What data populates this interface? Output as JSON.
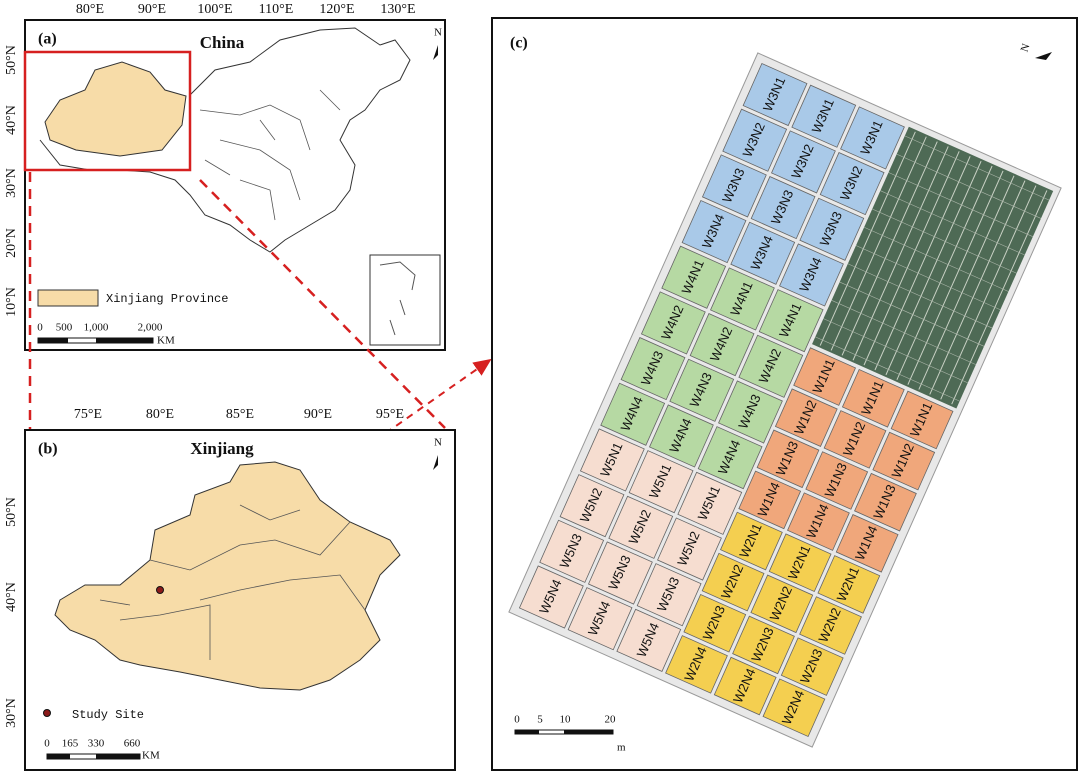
{
  "panel_a": {
    "label": "(a)",
    "title": "China",
    "lon_labels": [
      "80°E",
      "90°E",
      "100°E",
      "110°E",
      "120°E",
      "130°E"
    ],
    "lat_labels": [
      "50°N",
      "40°N",
      "30°N",
      "20°N",
      "10°N"
    ],
    "legend": "Xinjiang Province",
    "scale_labels": [
      "0",
      "500",
      "1,000",
      "2,000"
    ],
    "scale_unit": "KM",
    "north": "N"
  },
  "panel_b": {
    "label": "(b)",
    "title": "Xinjiang",
    "lon_labels": [
      "75°E",
      "80°E",
      "85°E",
      "90°E",
      "95°E"
    ],
    "lat_labels": [
      "50°N",
      "40°N",
      "30°N"
    ],
    "legend": "Study Site",
    "scale_labels": [
      "0",
      "165",
      "330",
      "660"
    ],
    "scale_unit": "KM",
    "north": "N"
  },
  "panel_c": {
    "label": "(c)",
    "north": "N",
    "scale_labels": [
      "0",
      "5",
      "10",
      "20"
    ],
    "scale_unit": "m",
    "blocks": [
      {
        "color": "#a9c9e8",
        "rows": [
          [
            "W3N1",
            "W3N1",
            "W3N1"
          ],
          [
            "W3N2",
            "W3N2",
            "W3N2"
          ],
          [
            "W3N3",
            "W3N3",
            "W3N3"
          ],
          [
            "W3N4",
            "W3N4",
            "W3N4"
          ]
        ]
      },
      {
        "color": "#b6d9a3",
        "rows": [
          [
            "W4N1",
            "W4N1",
            "W4N1"
          ],
          [
            "W4N2",
            "W4N2",
            "W4N2"
          ],
          [
            "W4N3",
            "W4N3",
            "W4N3"
          ],
          [
            "W4N4",
            "W4N4",
            "W4N4"
          ]
        ]
      },
      {
        "color": "#f6ddd0",
        "rows": [
          [
            "W5N1",
            "W5N1",
            "W5N1"
          ],
          [
            "W5N2",
            "W5N2",
            "W5N2"
          ],
          [
            "W5N3",
            "W5N3",
            "W5N3"
          ],
          [
            "W5N4",
            "W5N4",
            "W5N4"
          ]
        ]
      },
      {
        "color": "#f0a77b",
        "rows": [
          [
            "W1N1",
            "W1N1",
            "W1N1"
          ],
          [
            "W1N2",
            "W1N2",
            "W1N2"
          ],
          [
            "W1N3",
            "W1N3",
            "W1N3"
          ],
          [
            "W1N4",
            "W1N4",
            "W1N4"
          ]
        ]
      },
      {
        "color": "#f4cf50",
        "rows": [
          [
            "W2N1",
            "W2N1",
            "W2N1"
          ],
          [
            "W2N2",
            "W2N2",
            "W2N2"
          ],
          [
            "W2N3",
            "W2N3",
            "W2N3"
          ],
          [
            "W2N4",
            "W2N4",
            "W2N4"
          ]
        ]
      }
    ]
  }
}
